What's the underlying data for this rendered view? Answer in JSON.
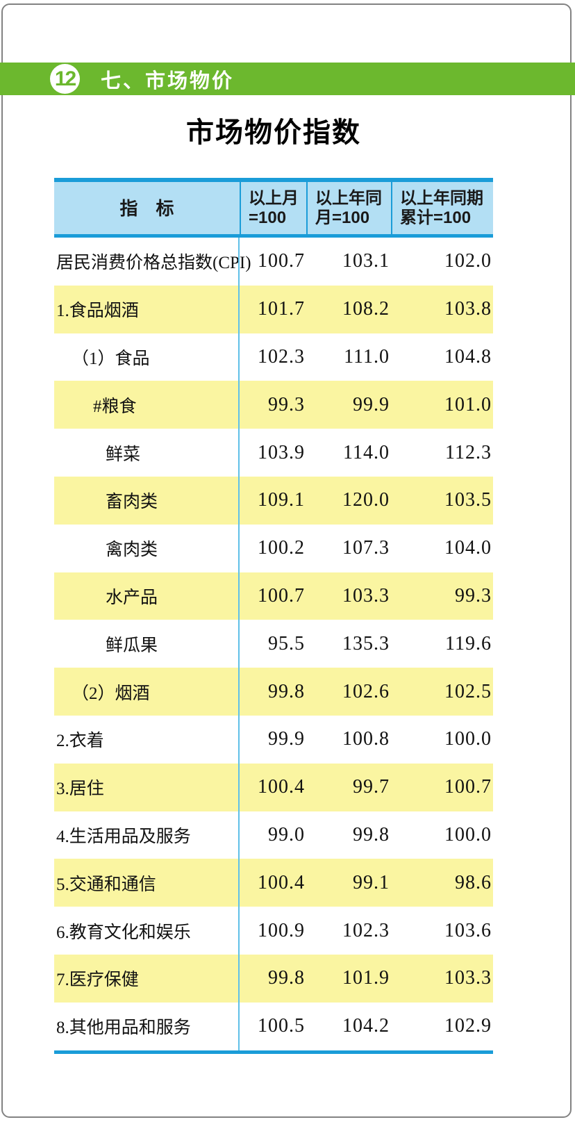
{
  "page": {
    "badge": "12",
    "section": "七、市场物价",
    "title": "市场物价指数"
  },
  "colors": {
    "green": "#6cb82e",
    "header_blue_bg": "#b3dff4",
    "border_blue": "#1a9cd8",
    "divider_blue": "#5fc0e8",
    "row_yellow": "#faf5a1"
  },
  "table": {
    "columns": [
      {
        "lines": [
          "指　标"
        ]
      },
      {
        "lines": [
          "以上月",
          "=100"
        ]
      },
      {
        "lines": [
          "以上年同",
          "月=100"
        ]
      },
      {
        "lines": [
          "以上年同期",
          "累计=100"
        ]
      }
    ],
    "rows": [
      {
        "label": "居民消费价格总指数(CPI)",
        "indent": 0,
        "values": [
          "100.7",
          "103.1",
          "102.0"
        ]
      },
      {
        "label": "1.食品烟酒",
        "indent": 0,
        "values": [
          "101.7",
          "108.2",
          "103.8"
        ]
      },
      {
        "label": "（1）食品",
        "indent": 1,
        "values": [
          "102.3",
          "111.0",
          "104.8"
        ]
      },
      {
        "label": "#粮食",
        "indent": 2,
        "values": [
          "99.3",
          "99.9",
          "101.0"
        ]
      },
      {
        "label": "鲜菜",
        "indent": 2,
        "values": [
          "103.9",
          "114.0",
          "112.3"
        ]
      },
      {
        "label": "畜肉类",
        "indent": 2,
        "values": [
          "109.1",
          "120.0",
          "103.5"
        ]
      },
      {
        "label": "禽肉类",
        "indent": 2,
        "values": [
          "100.2",
          "107.3",
          "104.0"
        ]
      },
      {
        "label": "水产品",
        "indent": 2,
        "values": [
          "100.7",
          "103.3",
          "99.3"
        ]
      },
      {
        "label": "鲜瓜果",
        "indent": 2,
        "values": [
          "95.5",
          "135.3",
          "119.6"
        ]
      },
      {
        "label": "（2）烟酒",
        "indent": 1,
        "values": [
          "99.8",
          "102.6",
          "102.5"
        ]
      },
      {
        "label": "2.衣着",
        "indent": 0,
        "values": [
          "99.9",
          "100.8",
          "100.0"
        ]
      },
      {
        "label": "3.居住",
        "indent": 0,
        "values": [
          "100.4",
          "99.7",
          "100.7"
        ]
      },
      {
        "label": "4.生活用品及服务",
        "indent": 0,
        "values": [
          "99.0",
          "99.8",
          "100.0"
        ]
      },
      {
        "label": "5.交通和通信",
        "indent": 0,
        "values": [
          "100.4",
          "99.1",
          "98.6"
        ]
      },
      {
        "label": "6.教育文化和娱乐",
        "indent": 0,
        "values": [
          "100.9",
          "102.3",
          "103.6"
        ]
      },
      {
        "label": "7.医疗保健",
        "indent": 0,
        "values": [
          "99.8",
          "101.9",
          "103.3"
        ]
      },
      {
        "label": "8.其他用品和服务",
        "indent": 0,
        "values": [
          "100.5",
          "104.2",
          "102.9"
        ]
      }
    ]
  }
}
